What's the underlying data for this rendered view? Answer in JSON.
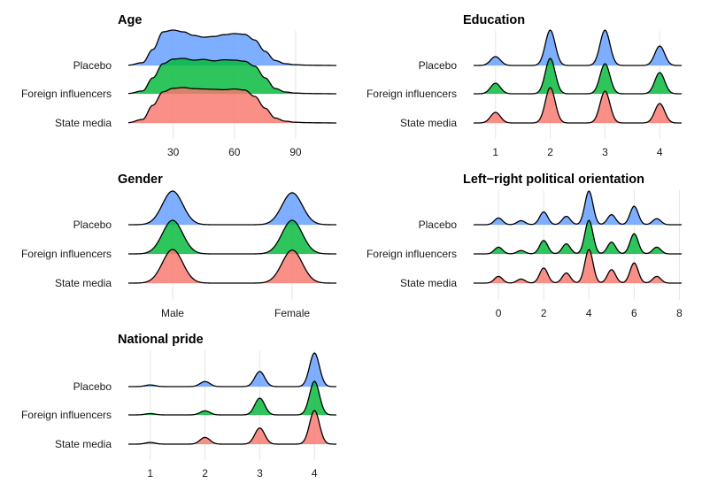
{
  "colors": {
    "placebo": "#619CFF",
    "foreign_influencers": "#00BA38",
    "state_media": "#F8766D",
    "grid": "#e6e6e6",
    "outline": "#000000"
  },
  "chart_data": [
    {
      "type": "ridgeline",
      "title": "Age",
      "groups": [
        "Placebo",
        "Foreign influencers",
        "State media"
      ],
      "x_ticks": [
        30,
        60,
        90
      ],
      "tick_labels": [
        "30",
        "60",
        "90"
      ],
      "xlim": [
        8,
        110
      ],
      "x": [
        8,
        15,
        20,
        25,
        30,
        35,
        40,
        45,
        50,
        55,
        60,
        65,
        70,
        75,
        80,
        85,
        90,
        95,
        100,
        110
      ],
      "series": [
        {
          "name": "Placebo",
          "color": "#619CFF",
          "values": [
            0.01,
            0.08,
            0.45,
            0.95,
            1.0,
            0.95,
            0.85,
            0.8,
            0.82,
            0.87,
            0.9,
            0.88,
            0.72,
            0.4,
            0.14,
            0.05,
            0.02,
            0.01,
            0.005,
            0
          ]
        },
        {
          "name": "Foreign influencers",
          "color": "#00BA38",
          "values": [
            0.01,
            0.08,
            0.45,
            0.85,
            0.98,
            1.0,
            0.95,
            0.97,
            0.93,
            0.96,
            0.95,
            0.92,
            0.78,
            0.45,
            0.15,
            0.05,
            0.02,
            0.01,
            0.005,
            0
          ]
        },
        {
          "name": "State media",
          "color": "#F8766D",
          "values": [
            0.01,
            0.1,
            0.5,
            0.88,
            0.98,
            1.0,
            0.97,
            0.96,
            0.95,
            0.94,
            0.96,
            0.93,
            0.75,
            0.42,
            0.14,
            0.05,
            0.02,
            0.01,
            0.005,
            0
          ]
        }
      ]
    },
    {
      "type": "ridgeline",
      "title": "Education",
      "groups": [
        "Placebo",
        "Foreign influencers",
        "State media"
      ],
      "x_ticks": [
        1,
        2,
        3,
        4
      ],
      "tick_labels": [
        "1",
        "2",
        "3",
        "4"
      ],
      "xlim": [
        0.6,
        4.4
      ],
      "peaks": [
        {
          "name": "Placebo",
          "color": "#619CFF",
          "values": [
            0.25,
            1.0,
            1.0,
            0.55
          ]
        },
        {
          "name": "Foreign influencers",
          "color": "#00BA38",
          "values": [
            0.3,
            1.0,
            0.85,
            0.6
          ]
        },
        {
          "name": "State media",
          "color": "#F8766D",
          "values": [
            0.3,
            1.0,
            0.9,
            0.55
          ]
        }
      ]
    },
    {
      "type": "ridgeline",
      "title": "Gender",
      "groups": [
        "Placebo",
        "Foreign influencers",
        "State media"
      ],
      "x_ticks": [
        1,
        2
      ],
      "tick_labels": [
        "Male",
        "Female"
      ],
      "xlim": [
        0.63,
        2.37
      ],
      "peaks": [
        {
          "name": "Placebo",
          "color": "#619CFF",
          "values": [
            1.0,
            0.95
          ]
        },
        {
          "name": "Foreign influencers",
          "color": "#00BA38",
          "values": [
            1.0,
            1.0
          ]
        },
        {
          "name": "State media",
          "color": "#F8766D",
          "values": [
            1.0,
            0.98
          ]
        }
      ]
    },
    {
      "type": "ridgeline",
      "title": "Left−right political orientation",
      "groups": [
        "Placebo",
        "Foreign influencers",
        "State media"
      ],
      "x_ticks": [
        0,
        2,
        4,
        6,
        8
      ],
      "tick_labels": [
        "0",
        "2",
        "4",
        "6",
        "8"
      ],
      "xlim": [
        -1.1,
        8.1
      ],
      "peak_positions": [
        0,
        1,
        2,
        3,
        4,
        5,
        6,
        7
      ],
      "peaks": [
        {
          "name": "Placebo",
          "color": "#619CFF",
          "values": [
            0.2,
            0.12,
            0.38,
            0.25,
            1.0,
            0.3,
            0.55,
            0.18
          ]
        },
        {
          "name": "Foreign influencers",
          "color": "#00BA38",
          "values": [
            0.2,
            0.1,
            0.4,
            0.3,
            1.0,
            0.35,
            0.6,
            0.2
          ]
        },
        {
          "name": "State media",
          "color": "#F8766D",
          "values": [
            0.2,
            0.12,
            0.45,
            0.3,
            1.0,
            0.4,
            0.6,
            0.2
          ]
        }
      ]
    },
    {
      "type": "ridgeline",
      "title": "National pride",
      "groups": [
        "Placebo",
        "Foreign influencers",
        "State media"
      ],
      "x_ticks": [
        1,
        2,
        3,
        4
      ],
      "tick_labels": [
        "1",
        "2",
        "3",
        "4"
      ],
      "xlim": [
        0.6,
        4.4
      ],
      "peaks": [
        {
          "name": "Placebo",
          "color": "#619CFF",
          "values": [
            0.05,
            0.15,
            0.45,
            1.0
          ]
        },
        {
          "name": "Foreign influencers",
          "color": "#00BA38",
          "values": [
            0.04,
            0.12,
            0.5,
            1.0
          ]
        },
        {
          "name": "State media",
          "color": "#F8766D",
          "values": [
            0.05,
            0.2,
            0.48,
            1.0
          ]
        }
      ]
    }
  ]
}
